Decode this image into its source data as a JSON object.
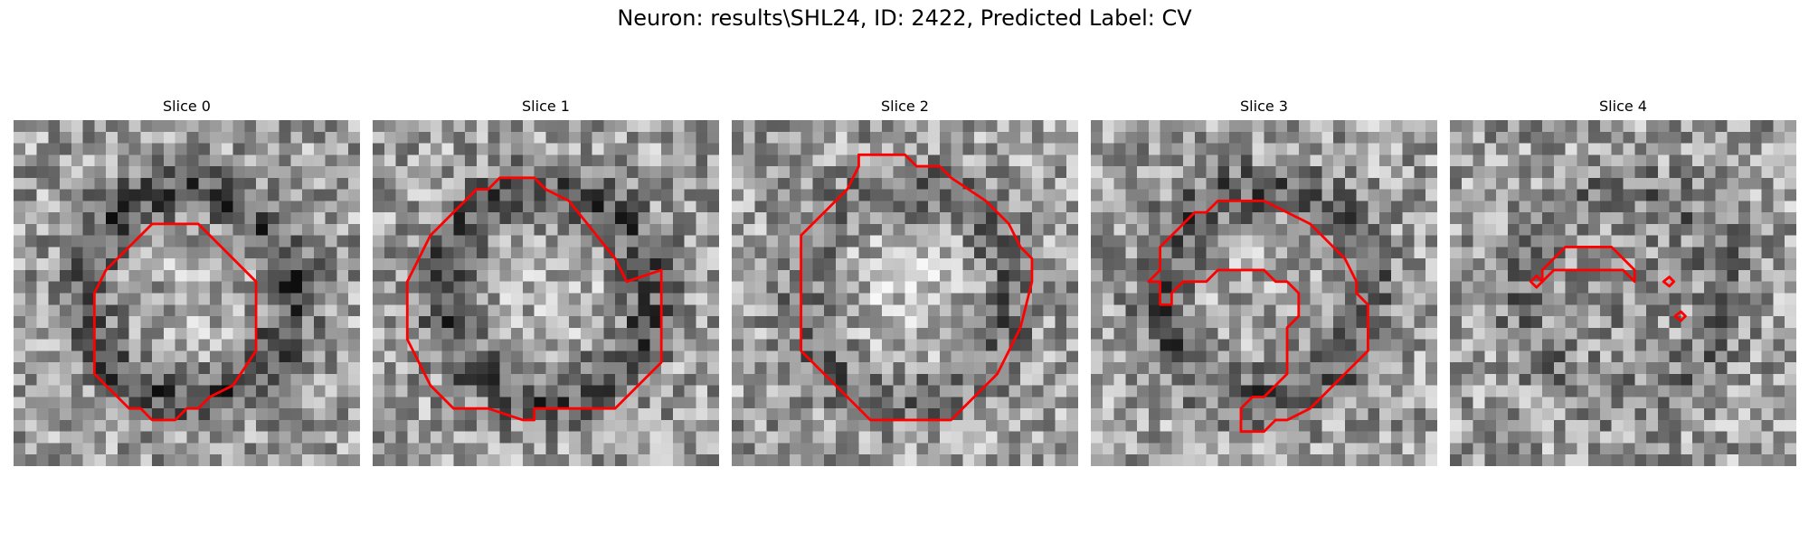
{
  "figure": {
    "title": "Neuron: results\\SHL24, ID: 2422, Predicted Label: CV",
    "contour_color": "#ff0000",
    "colormap": "gray",
    "grid": 30
  },
  "panels": [
    {
      "title": "Slice 0",
      "seed": 11,
      "ring": 0.55,
      "center_bias": 0.2,
      "contours": [
        [
          [
            13,
            9
          ],
          [
            16,
            9
          ],
          [
            21,
            14
          ],
          [
            21,
            20
          ],
          [
            19,
            23
          ],
          [
            17,
            24
          ],
          [
            16,
            25
          ],
          [
            15,
            25
          ],
          [
            14,
            26
          ],
          [
            12,
            26
          ],
          [
            11,
            25
          ],
          [
            10,
            25
          ],
          [
            7,
            22
          ],
          [
            7,
            15
          ],
          [
            8,
            13
          ],
          [
            10,
            11
          ],
          [
            11,
            10
          ],
          [
            12,
            9
          ]
        ]
      ]
    },
    {
      "title": "Slice 1",
      "seed": 23,
      "ring": 0.5,
      "center_bias": 0.3,
      "contours": [
        [
          [
            11,
            5
          ],
          [
            14,
            5
          ],
          [
            15,
            6
          ],
          [
            17,
            7
          ],
          [
            21,
            12
          ],
          [
            22,
            14
          ],
          [
            25,
            13
          ],
          [
            25,
            21
          ],
          [
            23,
            23
          ],
          [
            22,
            24
          ],
          [
            21,
            25
          ],
          [
            20,
            25
          ],
          [
            19,
            25
          ],
          [
            18,
            25
          ],
          [
            14,
            25
          ],
          [
            14,
            26
          ],
          [
            13,
            26
          ],
          [
            10,
            25
          ],
          [
            7,
            25
          ],
          [
            6,
            24
          ],
          [
            5,
            23
          ],
          [
            3,
            19
          ],
          [
            3,
            14
          ],
          [
            4,
            12
          ],
          [
            5,
            10
          ],
          [
            6,
            9
          ],
          [
            7,
            8
          ],
          [
            8,
            7
          ],
          [
            9,
            6
          ],
          [
            10,
            6
          ],
          [
            11,
            5
          ]
        ]
      ]
    },
    {
      "title": "Slice 2",
      "seed": 37,
      "ring": 0.35,
      "center_bias": 0.6,
      "contours": [
        [
          [
            11,
            3
          ],
          [
            15,
            3
          ],
          [
            16,
            4
          ],
          [
            18,
            4
          ],
          [
            19,
            5
          ],
          [
            22,
            7
          ],
          [
            23,
            8
          ],
          [
            24,
            9
          ],
          [
            25,
            11
          ],
          [
            26,
            12
          ],
          [
            26,
            14
          ],
          [
            25,
            18
          ],
          [
            24,
            20
          ],
          [
            23,
            22
          ],
          [
            22,
            23
          ],
          [
            21,
            24
          ],
          [
            20,
            25
          ],
          [
            19,
            26
          ],
          [
            12,
            26
          ],
          [
            11,
            25
          ],
          [
            10,
            24
          ],
          [
            9,
            23
          ],
          [
            8,
            22
          ],
          [
            7,
            21
          ],
          [
            6,
            20
          ],
          [
            6,
            10
          ],
          [
            7,
            9
          ],
          [
            8,
            8
          ],
          [
            9,
            7
          ],
          [
            10,
            6
          ],
          [
            11,
            4
          ]
        ]
      ]
    },
    {
      "title": "Slice 3",
      "seed": 51,
      "ring": 0.45,
      "center_bias": 0.1,
      "contours": [
        [
          [
            12,
            7
          ],
          [
            15,
            7
          ],
          [
            17,
            8
          ],
          [
            19,
            9
          ],
          [
            20,
            10
          ],
          [
            21,
            11
          ],
          [
            22,
            12
          ],
          [
            23,
            14
          ],
          [
            23,
            15
          ],
          [
            24,
            16
          ],
          [
            24,
            20
          ],
          [
            23,
            21
          ],
          [
            22,
            22
          ],
          [
            21,
            23
          ],
          [
            20,
            24
          ],
          [
            19,
            25
          ],
          [
            17,
            26
          ],
          [
            16,
            26
          ],
          [
            15,
            27
          ],
          [
            13,
            27
          ],
          [
            13,
            25
          ],
          [
            14,
            24
          ],
          [
            15,
            24
          ],
          [
            16,
            23
          ],
          [
            17,
            22
          ],
          [
            17,
            18
          ],
          [
            18,
            17
          ],
          [
            18,
            15
          ],
          [
            17,
            14
          ],
          [
            16,
            14
          ],
          [
            15,
            13
          ],
          [
            11,
            13
          ],
          [
            10,
            14
          ],
          [
            8,
            14
          ],
          [
            7,
            15
          ],
          [
            7,
            16
          ],
          [
            6,
            16
          ],
          [
            6,
            15
          ],
          [
            6,
            14
          ],
          [
            5,
            14
          ],
          [
            6,
            13
          ],
          [
            6,
            11
          ],
          [
            7,
            10
          ],
          [
            8,
            9
          ],
          [
            9,
            8
          ],
          [
            10,
            8
          ],
          [
            11,
            7
          ]
        ]
      ]
    },
    {
      "title": "Slice 4",
      "seed": 67,
      "ring": 0.25,
      "center_bias": -0.2,
      "contours": [
        [
          [
            10,
            11
          ],
          [
            13,
            11
          ],
          [
            14,
            11
          ],
          [
            15,
            12
          ],
          [
            16,
            13
          ],
          [
            16,
            14
          ],
          [
            15,
            13
          ],
          [
            9,
            13
          ],
          [
            8,
            14
          ],
          [
            8,
            13
          ],
          [
            9,
            12
          ],
          [
            10,
            11
          ]
        ],
        [
          [
            7,
            14
          ],
          [
            7.5,
            13.5
          ],
          [
            8,
            14
          ],
          [
            7.5,
            14.5
          ]
        ],
        [
          [
            18.5,
            14
          ],
          [
            19,
            13.6
          ],
          [
            19.4,
            14
          ],
          [
            19,
            14.4
          ]
        ],
        [
          [
            19.5,
            17
          ],
          [
            20,
            16.6
          ],
          [
            20.4,
            17
          ],
          [
            20,
            17.4
          ]
        ]
      ]
    }
  ]
}
